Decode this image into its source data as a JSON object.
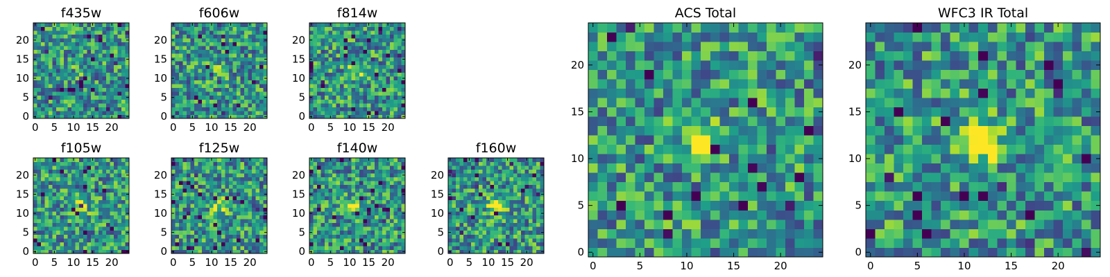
{
  "chart_data": [
    {
      "type": "heatmap",
      "title": "f435w",
      "xticks": [
        0,
        5,
        10,
        15,
        20
      ],
      "yticks": [
        0,
        5,
        10,
        15,
        20
      ],
      "xlim": [
        -0.5,
        24.5
      ],
      "ylim": [
        -0.5,
        24.5
      ],
      "grid": false,
      "colormap": "viridis",
      "peak_center": [
        11,
        12
      ],
      "peak_strength": 0.1,
      "seed": 11
    },
    {
      "type": "heatmap",
      "title": "f606w",
      "xticks": [
        0,
        5,
        10,
        15,
        20
      ],
      "yticks": [
        0,
        5,
        10,
        15,
        20
      ],
      "xlim": [
        -0.5,
        24.5
      ],
      "ylim": [
        -0.5,
        24.5
      ],
      "grid": false,
      "colormap": "viridis",
      "peak_center": [
        11,
        12
      ],
      "peak_strength": 0.25,
      "seed": 23
    },
    {
      "type": "heatmap",
      "title": "f814w",
      "xticks": [
        0,
        5,
        10,
        15,
        20
      ],
      "yticks": [
        0,
        5,
        10,
        15,
        20
      ],
      "xlim": [
        -0.5,
        24.5
      ],
      "ylim": [
        -0.5,
        24.5
      ],
      "grid": false,
      "colormap": "viridis",
      "peak_center": [
        12,
        12
      ],
      "peak_strength": 0.35,
      "seed": 37
    },
    {
      "type": "heatmap",
      "title": "f105w",
      "xticks": [
        0,
        5,
        10,
        15,
        20
      ],
      "yticks": [
        0,
        5,
        10,
        15,
        20
      ],
      "xlim": [
        -0.5,
        24.5
      ],
      "ylim": [
        -0.5,
        24.5
      ],
      "grid": false,
      "colormap": "viridis",
      "peak_center": [
        12,
        12
      ],
      "peak_strength": 0.3,
      "seed": 41
    },
    {
      "type": "heatmap",
      "title": "f125w",
      "xticks": [
        0,
        5,
        10,
        15,
        20
      ],
      "yticks": [
        0,
        5,
        10,
        15,
        20
      ],
      "xlim": [
        -0.5,
        24.5
      ],
      "ylim": [
        -0.5,
        24.5
      ],
      "grid": false,
      "colormap": "viridis",
      "peak_center": [
        12,
        12
      ],
      "peak_strength": 0.4,
      "seed": 53
    },
    {
      "type": "heatmap",
      "title": "f140w",
      "xticks": [
        0,
        5,
        10,
        15,
        20
      ],
      "yticks": [
        0,
        5,
        10,
        15,
        20
      ],
      "xlim": [
        -0.5,
        24.5
      ],
      "ylim": [
        -0.5,
        24.5
      ],
      "grid": false,
      "colormap": "viridis",
      "peak_center": [
        11,
        12
      ],
      "peak_strength": 0.35,
      "seed": 67
    },
    {
      "type": "heatmap",
      "title": "f160w",
      "xticks": [
        0,
        5,
        10,
        15,
        20
      ],
      "yticks": [
        0,
        5,
        10,
        15,
        20
      ],
      "xlim": [
        -0.5,
        24.5
      ],
      "ylim": [
        -0.5,
        24.5
      ],
      "grid": false,
      "colormap": "viridis",
      "peak_center": [
        12,
        12
      ],
      "peak_strength": 0.6,
      "seed": 79
    },
    {
      "type": "heatmap",
      "title": "ACS Total",
      "xticks": [
        0,
        5,
        10,
        15,
        20
      ],
      "yticks": [
        0,
        5,
        10,
        15,
        20
      ],
      "xlim": [
        -0.5,
        24.5
      ],
      "ylim": [
        -0.5,
        24.5
      ],
      "grid": false,
      "colormap": "viridis",
      "peak_center": [
        11.5,
        12
      ],
      "peak_strength": 0.55,
      "seed": 97
    },
    {
      "type": "heatmap",
      "title": "WFC3 IR Total",
      "xticks": [
        0,
        5,
        10,
        15,
        20
      ],
      "yticks": [
        0,
        5,
        10,
        15,
        20
      ],
      "xlim": [
        -0.5,
        24.5
      ],
      "ylim": [
        -0.5,
        24.5
      ],
      "grid": false,
      "colormap": "viridis",
      "peak_center": [
        11.5,
        12
      ],
      "peak_strength": 0.8,
      "seed": 131
    }
  ]
}
